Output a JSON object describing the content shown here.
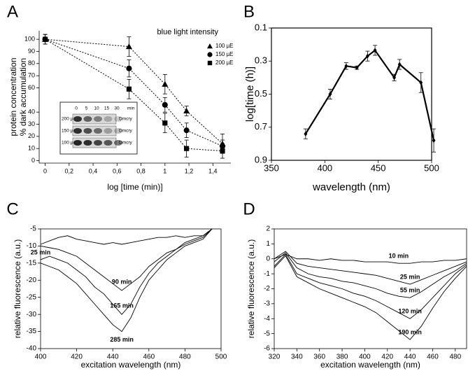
{
  "chart_data": [
    {
      "panel": "A",
      "type": "scatter",
      "xlabel": "log [time (min)]",
      "ylabel": [
        "protein concentration",
        "% dark accumulation"
      ],
      "xlim": [
        -0.05,
        1.55
      ],
      "ylim": [
        -2,
        107
      ],
      "xticks": [
        0,
        {
          "value": 0.2,
          "label": "0,2"
        },
        {
          "value": 0.4,
          "label": "0,4"
        },
        {
          "value": 0.6,
          "label": "0,6"
        },
        {
          "value": 0.8,
          "label": "0,8"
        },
        1,
        {
          "value": 1.2,
          "label": "1,2"
        },
        {
          "value": 1.4,
          "label": "1,4"
        }
      ],
      "yticks": [
        0,
        10,
        20,
        30,
        40,
        60,
        70,
        80,
        90,
        100
      ],
      "legend_title": "blue light intensity",
      "legend": "top-right",
      "box": false,
      "x": [
        0,
        0.7,
        1.0,
        1.18,
        1.48
      ],
      "series": [
        {
          "name": "100 µE",
          "marker": "triangle",
          "color": "#000000",
          "values": [
            100,
            94,
            63,
            41,
            14
          ],
          "errors": [
            4,
            8,
            8,
            4,
            8
          ]
        },
        {
          "name": "150 µE",
          "marker": "circle",
          "color": "#000000",
          "values": [
            100,
            76,
            46,
            25,
            12
          ],
          "errors": [
            4,
            7,
            6,
            6,
            5
          ]
        },
        {
          "name": "200 µE",
          "marker": "square",
          "color": "#000000",
          "values": [
            100,
            59,
            31,
            10,
            8
          ],
          "errors": [
            4,
            8,
            8,
            7,
            6
          ]
        }
      ],
      "inset": {
        "columns": [
          "0",
          "5",
          "10",
          "15",
          "30"
        ],
        "unit": "min",
        "rows": [
          "200 µE",
          "150 µE",
          "100 µE"
        ],
        "protein": "Dmcry"
      }
    },
    {
      "panel": "B",
      "type": "line",
      "xlabel": "wavelength (nm)",
      "ylabel": [
        "log[time (h)]"
      ],
      "xlim": [
        350,
        500
      ],
      "ylim": [
        0.9,
        0.1
      ],
      "xticks": [
        350,
        400,
        450,
        500
      ],
      "yticks": [
        0.1,
        0.3,
        0.5,
        0.7,
        0.9
      ],
      "box": true,
      "x": [
        382,
        405,
        420,
        430,
        440,
        447,
        465,
        470,
        490,
        502
      ],
      "series": [
        {
          "marker": "diamond",
          "color": "#000000",
          "values": [
            0.74,
            0.5,
            0.33,
            0.34,
            0.27,
            0.235,
            0.4,
            0.32,
            0.43,
            0.78
          ],
          "errors": [
            0.03,
            0.03,
            0.02,
            0.01,
            0.03,
            0.03,
            0.02,
            0.03,
            0.06,
            0.07
          ]
        }
      ]
    },
    {
      "panel": "C",
      "type": "line",
      "xlabel": "excitation wavelength (nm)",
      "ylabel": [
        "relative fluorescence (a.u.)"
      ],
      "xlim": [
        400,
        500
      ],
      "ylim": [
        -40,
        -5
      ],
      "xticks": [
        400,
        420,
        440,
        460,
        480,
        500
      ],
      "yticks": [
        -40,
        -35,
        -30,
        -25,
        -20,
        -15,
        -10,
        -5
      ],
      "box": true,
      "x": [
        400,
        405,
        410,
        415,
        420,
        425,
        430,
        435,
        440,
        445,
        450,
        455,
        460,
        465,
        470,
        475,
        480,
        485,
        490,
        495
      ],
      "series": [
        {
          "name": "25 min",
          "color": "#000000",
          "values": [
            -9.5,
            -8.5,
            -7.5,
            -7,
            -8,
            -8.5,
            -9,
            -9.5,
            -9,
            -9.5,
            -9,
            -8.5,
            -8,
            -7.5,
            -7.5,
            -7,
            -7.5,
            -7,
            -7,
            -5
          ]
        },
        {
          "name": "90 min",
          "color": "#000000",
          "values": [
            -10,
            -10.5,
            -11,
            -12,
            -13,
            -15,
            -17,
            -19,
            -21,
            -23,
            -21,
            -19,
            -16,
            -14,
            -12,
            -11,
            -9,
            -8,
            -7,
            -5
          ]
        },
        {
          "name": "165 min",
          "color": "#000000",
          "values": [
            -14,
            -13,
            -14,
            -15,
            -17,
            -19,
            -22,
            -24,
            -27,
            -30,
            -27,
            -22,
            -18,
            -15,
            -13,
            -11,
            -9.5,
            -8.5,
            -7.5,
            -5
          ]
        },
        {
          "name": "285 min",
          "color": "#000000",
          "values": [
            -15,
            -16,
            -17,
            -19,
            -21,
            -24,
            -27,
            -30,
            -33,
            -35,
            -31,
            -25,
            -20,
            -17,
            -14,
            -12,
            -10,
            -9,
            -8,
            -5
          ]
        }
      ]
    },
    {
      "panel": "D",
      "type": "line",
      "xlabel": "excitation wavelength (nm)",
      "ylabel": [
        "relative fluorescence (a.u.)"
      ],
      "xlim": [
        320,
        490
      ],
      "ylim": [
        -6,
        2
      ],
      "xticks": [
        320,
        340,
        360,
        380,
        400,
        420,
        440,
        460,
        480
      ],
      "yticks": [
        -6,
        -5,
        -4,
        -3,
        -2,
        -1,
        0,
        1,
        2
      ],
      "box": true,
      "x": [
        320,
        330,
        340,
        350,
        360,
        370,
        380,
        390,
        400,
        410,
        420,
        430,
        440,
        450,
        460,
        470,
        480,
        490
      ],
      "series": [
        {
          "name": "10 min",
          "color": "#000000",
          "values": [
            0,
            0.3,
            0,
            0,
            -0.1,
            0,
            -0.1,
            -0.1,
            -0.2,
            -0.2,
            -0.2,
            -0.3,
            -0.3,
            -0.2,
            -0.2,
            -0.1,
            -0.1,
            0
          ]
        },
        {
          "name": "25 min",
          "color": "#000000",
          "values": [
            0,
            0.5,
            -0.3,
            -0.5,
            -0.6,
            -0.7,
            -0.8,
            -0.9,
            -1,
            -1.1,
            -1.3,
            -1.5,
            -1.7,
            -1.4,
            -1.1,
            -0.8,
            -0.5,
            -0.2
          ]
        },
        {
          "name": "55 min",
          "color": "#000000",
          "values": [
            -0.2,
            0.4,
            -0.6,
            -1,
            -1.2,
            -1.3,
            -1.5,
            -1.6,
            -1.8,
            -2,
            -2.3,
            -2.5,
            -2.6,
            -2.2,
            -1.7,
            -1.2,
            -0.8,
            -0.3
          ]
        },
        {
          "name": "120 min",
          "color": "#000000",
          "values": [
            -0.5,
            0.3,
            -1,
            -1.3,
            -1.6,
            -1.8,
            -2,
            -2.3,
            -2.5,
            -2.8,
            -3.2,
            -3.6,
            -4,
            -3.4,
            -2.6,
            -1.8,
            -1,
            -0.4
          ]
        },
        {
          "name": "190 min",
          "color": "#000000",
          "values": [
            -0.6,
            0.2,
            -1.2,
            -1.6,
            -2,
            -2.3,
            -2.6,
            -2.9,
            -3.2,
            -3.6,
            -4.2,
            -4.8,
            -5.4,
            -4.5,
            -3.3,
            -2.2,
            -1.3,
            -0.5
          ]
        }
      ]
    }
  ]
}
